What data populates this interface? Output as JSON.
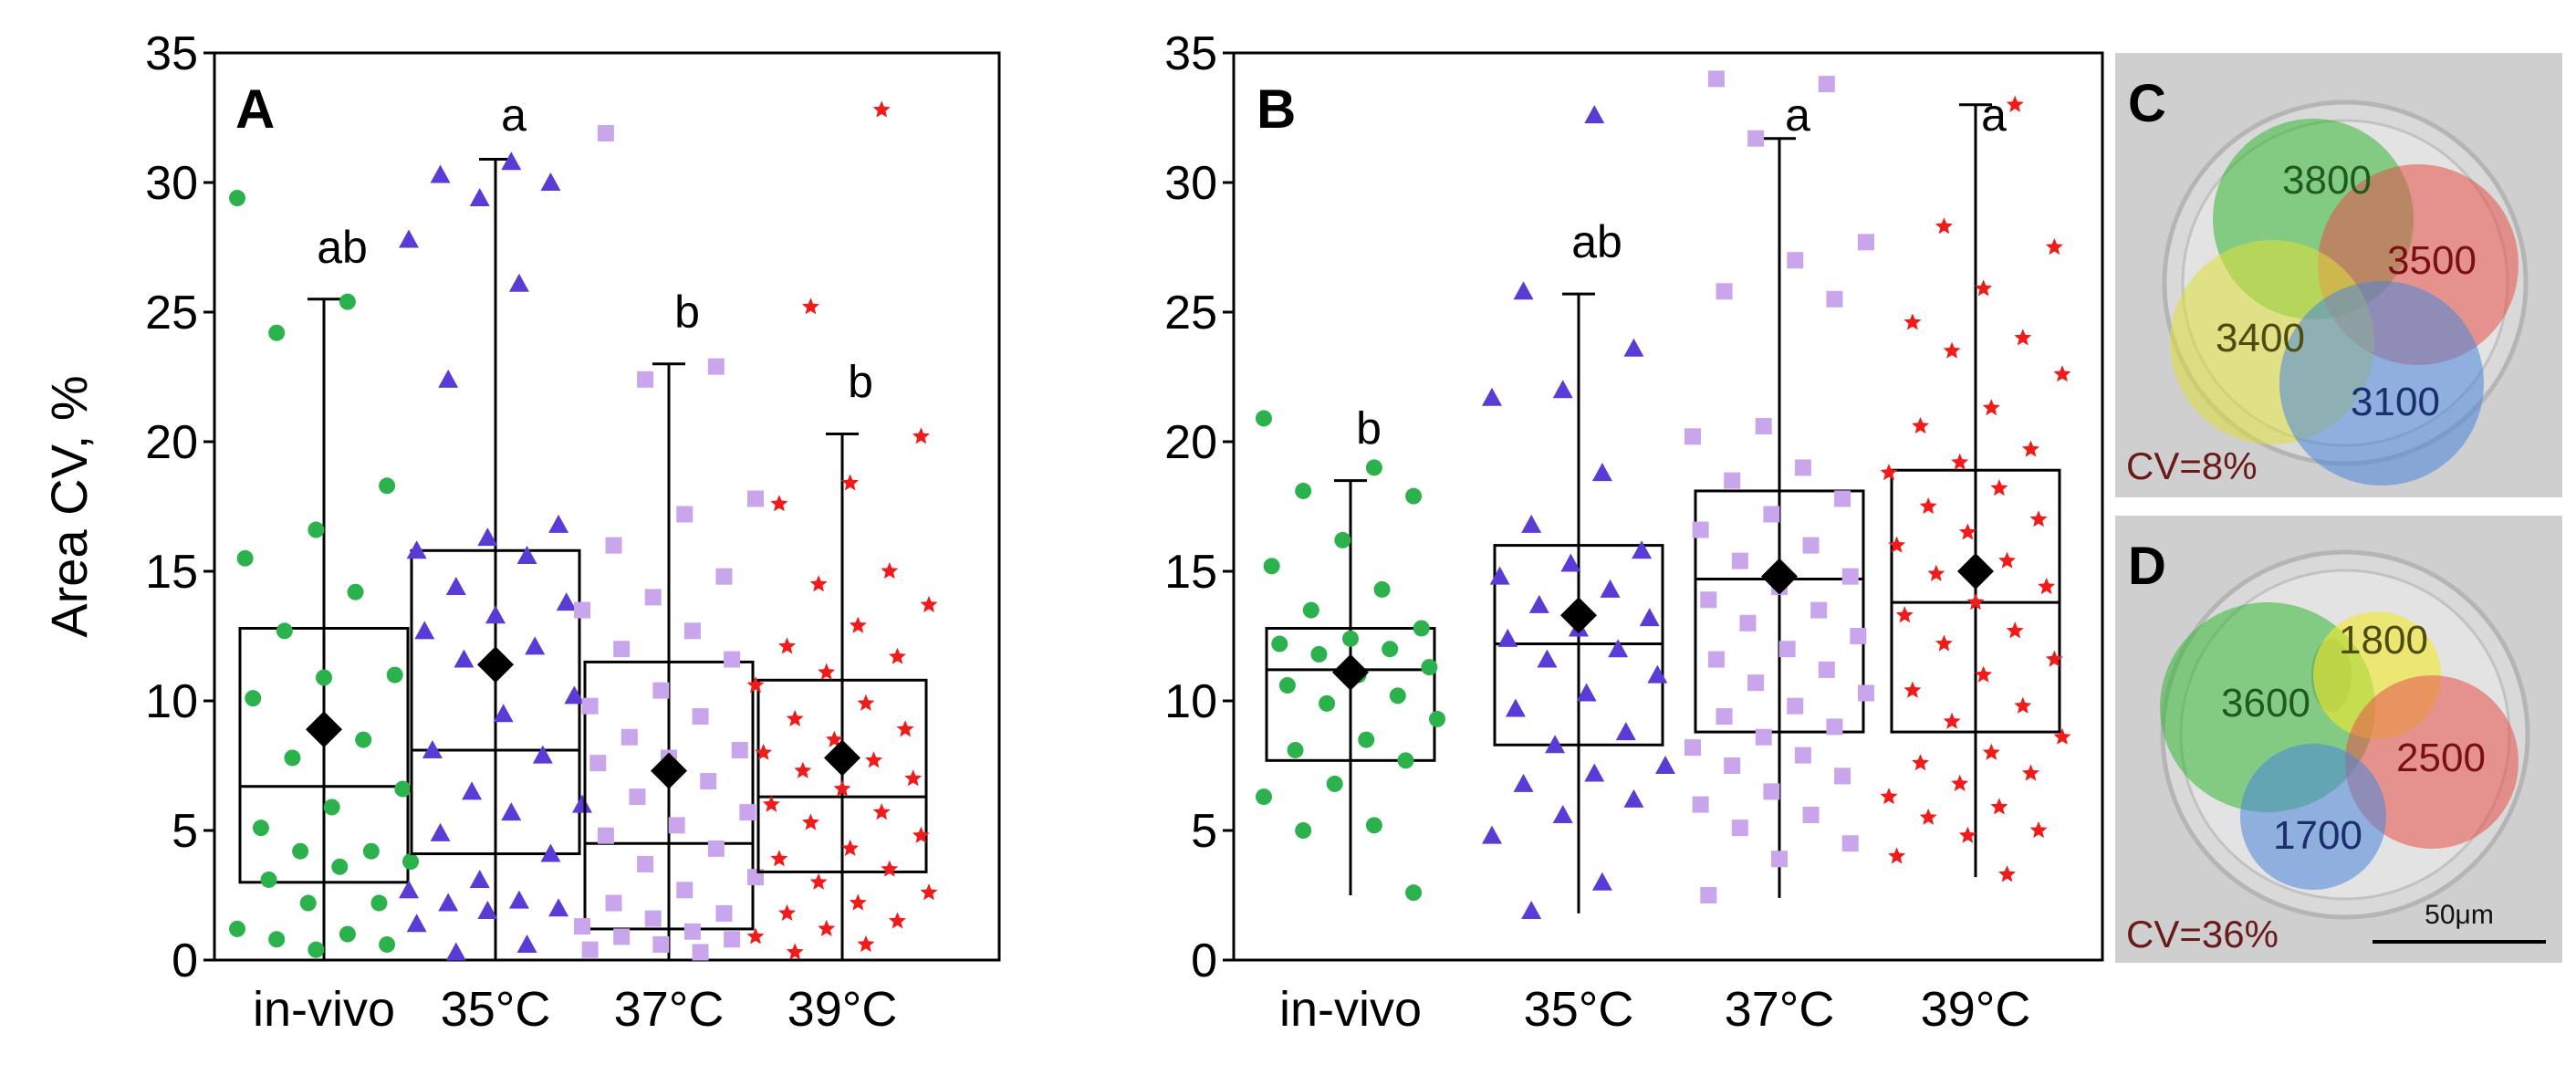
{
  "chart_data": [
    {
      "panel": "A",
      "type": "box",
      "ylabel": "Area CV, %",
      "ylim": [
        0,
        35
      ],
      "yticks": [
        "0",
        "5",
        "10",
        "15",
        "20",
        "25",
        "30",
        "35"
      ],
      "categories": [
        "in-vivo",
        "35°C",
        "37°C",
        "39°C"
      ],
      "groups": [
        {
          "name": "in-vivo",
          "marker": "circle",
          "color": "#2bb24c",
          "whisker_low": 0.0,
          "q1": 3.0,
          "median": 6.7,
          "q3": 12.8,
          "whisker_high": 25.5,
          "mean": 8.9,
          "letter": "ab",
          "points": [
            29.4,
            25.4,
            24.2,
            18.3,
            16.6,
            15.5,
            14.2,
            12.7,
            11.0,
            10.9,
            10.1,
            8.5,
            7.8,
            6.6,
            5.9,
            5.1,
            4.2,
            4.2,
            3.8,
            3.6,
            3.1,
            2.2,
            2.2,
            1.2,
            1.0,
            0.8,
            0.6,
            0.4
          ]
        },
        {
          "name": "35°C",
          "marker": "triangle",
          "color": "#5b3bd6",
          "whisker_low": 0.0,
          "q1": 4.1,
          "median": 8.1,
          "q3": 15.8,
          "whisker_high": 30.9,
          "mean": 11.4,
          "letter": "a",
          "points": [
            30.8,
            30.3,
            30.0,
            29.4,
            27.8,
            26.1,
            22.4,
            16.8,
            16.3,
            15.8,
            15.6,
            14.4,
            13.8,
            13.3,
            12.7,
            12.1,
            11.6,
            10.2,
            9.5,
            8.1,
            7.9,
            6.5,
            6.0,
            5.7,
            4.9,
            4.1,
            3.1,
            2.7,
            2.3,
            2.2,
            2.0,
            1.9,
            1.4,
            0.6,
            0.3
          ]
        },
        {
          "name": "37°C",
          "marker": "square",
          "color": "#c9a6ec",
          "whisker_low": 0.0,
          "q1": 1.2,
          "median": 4.5,
          "q3": 11.5,
          "whisker_high": 23.0,
          "mean": 7.3,
          "letter": "b",
          "points": [
            31.9,
            22.9,
            22.4,
            17.8,
            17.2,
            16.0,
            14.8,
            14.0,
            13.5,
            12.7,
            12.0,
            11.6,
            10.4,
            9.8,
            9.4,
            8.6,
            8.1,
            7.8,
            7.6,
            6.9,
            6.3,
            5.7,
            5.2,
            4.8,
            4.3,
            3.7,
            3.2,
            2.7,
            2.2,
            1.8,
            1.6,
            1.3,
            1.1,
            0.9,
            0.8,
            0.6,
            0.4,
            0.3
          ]
        },
        {
          "name": "39°C",
          "marker": "star",
          "color": "#ef1c1c",
          "whisker_low": 0.0,
          "q1": 3.4,
          "median": 6.3,
          "q3": 10.8,
          "whisker_high": 20.3,
          "mean": 7.8,
          "letter": "b",
          "points": [
            32.8,
            25.2,
            20.2,
            18.4,
            17.6,
            15.0,
            14.5,
            13.7,
            12.9,
            12.1,
            11.7,
            11.1,
            10.6,
            9.9,
            9.3,
            8.9,
            8.5,
            8.0,
            7.7,
            7.3,
            7.0,
            6.6,
            6.0,
            5.7,
            5.3,
            4.8,
            4.3,
            3.9,
            3.5,
            3.0,
            2.6,
            2.2,
            1.8,
            1.5,
            1.2,
            0.9,
            0.6,
            0.3
          ]
        }
      ]
    },
    {
      "panel": "B",
      "type": "box",
      "ylabel": "",
      "ylim": [
        0,
        35
      ],
      "yticks": [
        "0",
        "5",
        "10",
        "15",
        "20",
        "25",
        "30",
        "35"
      ],
      "categories": [
        "in-vivo",
        "35°C",
        "37°C",
        "39°C"
      ],
      "groups": [
        {
          "name": "in-vivo",
          "marker": "circle",
          "color": "#2bb24c",
          "whisker_low": 2.5,
          "q1": 7.7,
          "median": 11.2,
          "q3": 12.8,
          "whisker_high": 18.5,
          "mean": 11.1,
          "letter": "b",
          "points": [
            20.9,
            19.0,
            18.1,
            17.9,
            16.2,
            15.2,
            14.3,
            13.5,
            12.8,
            12.4,
            12.2,
            12.0,
            11.8,
            11.3,
            11.0,
            10.6,
            10.2,
            9.9,
            9.3,
            8.5,
            8.1,
            7.7,
            6.8,
            6.3,
            5.2,
            5.0,
            2.6
          ]
        },
        {
          "name": "35°C",
          "marker": "triangle",
          "color": "#5b3bd6",
          "whisker_low": 1.8,
          "q1": 8.3,
          "median": 12.2,
          "q3": 16.0,
          "whisker_high": 25.7,
          "mean": 13.3,
          "letter": "ab",
          "points": [
            32.6,
            25.8,
            23.6,
            22.0,
            21.7,
            18.8,
            16.8,
            15.8,
            15.3,
            14.8,
            14.3,
            13.7,
            13.2,
            12.8,
            12.4,
            12.0,
            11.6,
            11.0,
            10.3,
            9.7,
            8.8,
            8.3,
            7.5,
            7.2,
            6.8,
            6.2,
            5.6,
            4.8,
            3.0,
            1.9
          ]
        },
        {
          "name": "37°C",
          "marker": "square",
          "color": "#c9a6ec",
          "whisker_low": 2.4,
          "q1": 8.8,
          "median": 14.7,
          "q3": 18.1,
          "whisker_high": 31.7,
          "mean": 14.8,
          "letter": "a",
          "points": [
            34.0,
            33.8,
            31.7,
            27.7,
            27.0,
            25.8,
            25.5,
            20.6,
            20.2,
            19.0,
            18.5,
            17.8,
            17.2,
            16.6,
            16.0,
            15.4,
            14.8,
            14.4,
            13.9,
            13.5,
            13.0,
            12.5,
            12.0,
            11.6,
            11.2,
            10.7,
            10.3,
            9.8,
            9.4,
            9.0,
            8.6,
            8.2,
            7.9,
            7.5,
            7.1,
            6.5,
            6.0,
            5.6,
            5.1,
            4.5,
            3.9,
            2.5
          ]
        },
        {
          "name": "39°C",
          "marker": "star",
          "color": "#ef1c1c",
          "whisker_low": 3.2,
          "q1": 8.8,
          "median": 13.8,
          "q3": 18.9,
          "whisker_high": 33.0,
          "mean": 15.0,
          "letter": "a",
          "points": [
            33.0,
            28.3,
            27.5,
            25.9,
            24.6,
            24.0,
            23.5,
            22.6,
            21.3,
            20.6,
            19.7,
            19.2,
            18.8,
            18.2,
            17.5,
            17.0,
            16.5,
            16.0,
            15.4,
            14.9,
            14.4,
            13.8,
            13.3,
            12.7,
            12.2,
            11.6,
            11.0,
            10.4,
            9.8,
            9.2,
            8.6,
            8.0,
            7.6,
            7.2,
            6.8,
            6.3,
            5.9,
            5.5,
            5.0,
            4.8,
            4.0,
            3.3
          ]
        }
      ]
    }
  ],
  "micrographs": [
    {
      "label": "C",
      "cv_text": "CV=8%",
      "regions": [
        {
          "value": "3800",
          "color": "#35b835"
        },
        {
          "value": "3500",
          "color": "#e8504a"
        },
        {
          "value": "3400",
          "color": "#dede3b"
        },
        {
          "value": "3100",
          "color": "#4a86db"
        }
      ]
    },
    {
      "label": "D",
      "cv_text": "CV=36%",
      "regions": [
        {
          "value": "3600",
          "color": "#35b835"
        },
        {
          "value": "1800",
          "color": "#f1ea2c"
        },
        {
          "value": "2500",
          "color": "#e8504a"
        },
        {
          "value": "1700",
          "color": "#4a86db"
        }
      ]
    }
  ],
  "scale_bar": {
    "text": "50μm"
  },
  "style": {
    "label_color": "#6b1a1a",
    "mean_marker_color": "#000000"
  }
}
